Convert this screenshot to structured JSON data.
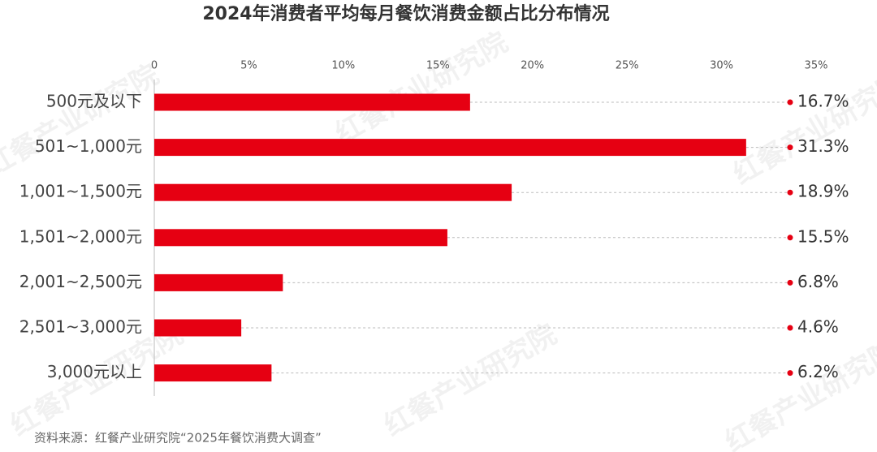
{
  "chart_data": {
    "type": "bar",
    "orientation": "horizontal",
    "title": "2024年消费者平均每月餐饮消费金额占比分布情况",
    "source": "资料来源：红餐产业研究院“2025年餐饮消费大调查”",
    "watermark": "红餐产业研究院",
    "categories": [
      "500元及以下",
      "501~1,000元",
      "1,001~1,500元",
      "1,501~2,000元",
      "2,001~2,500元",
      "2,501~3,000元",
      "3,000元以上"
    ],
    "values": [
      16.7,
      31.3,
      18.9,
      15.5,
      6.8,
      4.6,
      6.2
    ],
    "value_labels": [
      "16.7%",
      "31.3%",
      "18.9%",
      "15.5%",
      "6.8%",
      "4.6%",
      "6.2%"
    ],
    "color": "#e60012",
    "xlim": [
      0,
      35
    ],
    "xticks": [
      0,
      {
        "value": 5,
        "label": "5%"
      },
      {
        "value": 10,
        "label": "10%"
      },
      {
        "value": 15,
        "label": "15%"
      },
      {
        "value": 20,
        "label": "20%"
      },
      {
        "value": 25,
        "label": "25%"
      },
      {
        "value": 30,
        "label": "30%"
      },
      {
        "value": 35,
        "label": "35%"
      }
    ]
  }
}
